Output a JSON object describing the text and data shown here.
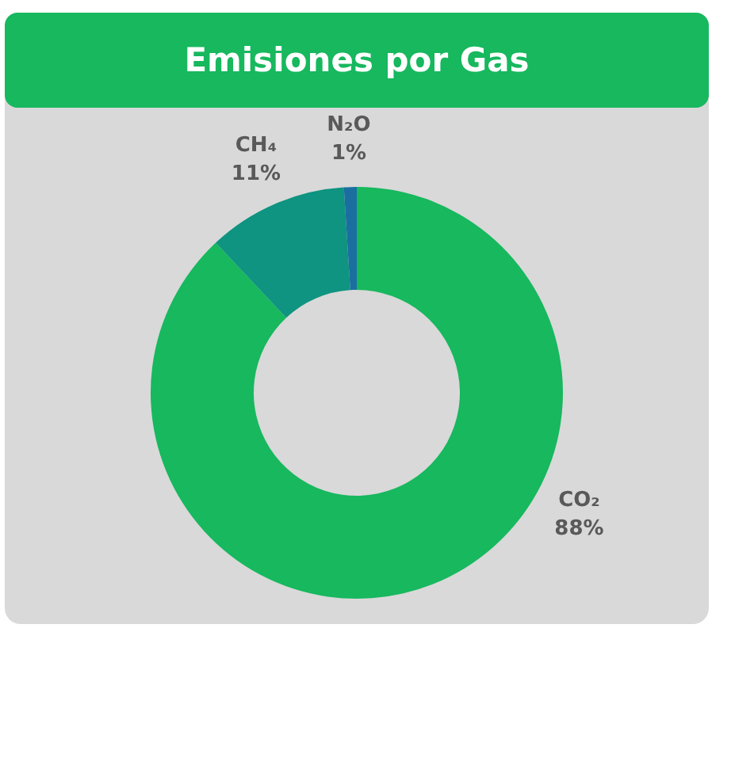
{
  "chart_data": {
    "type": "donut",
    "title": "Emisiones por Gas",
    "categories": [
      "CO₂",
      "CH₄",
      "N₂O"
    ],
    "values": [
      88,
      11,
      1
    ],
    "value_labels": [
      "88%",
      "11%",
      "1%"
    ],
    "colors": [
      "#17b85e",
      "#0e9480",
      "#1a6fa0"
    ],
    "legend": false
  }
}
